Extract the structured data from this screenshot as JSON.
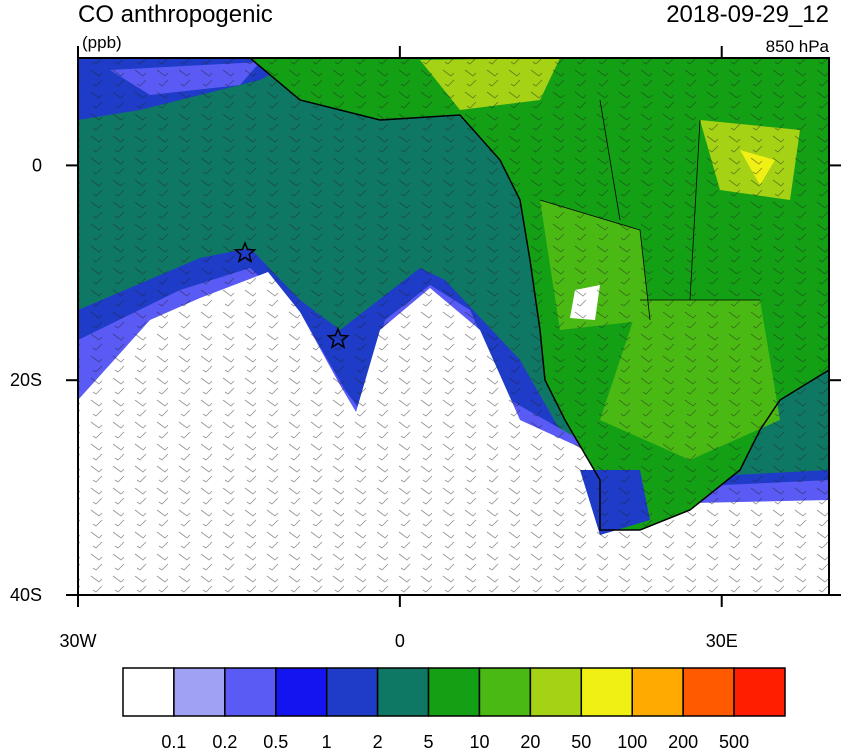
{
  "header": {
    "title": "CO anthropogenic",
    "units": "(ppb)",
    "date": "2018-09-29_12",
    "level": "850 hPa"
  },
  "map": {
    "lonlim": [
      -30,
      40
    ],
    "latlim": [
      -40,
      10
    ],
    "lon_ticks": [
      {
        "value": -30,
        "label": "30W"
      },
      0,
      {
        "value": 30,
        "label": "30E"
      }
    ],
    "lat_ticks": [
      0,
      {
        "value": -20,
        "label": "20S"
      },
      {
        "value": -40,
        "label": "40S"
      }
    ]
  },
  "colorbar": {
    "colors": [
      "#ffffff",
      "#a0a0f5",
      "#5a5af5",
      "#1414f0",
      "#1e3cc8",
      "#0f7864",
      "#14a014",
      "#4bb914",
      "#a5d214",
      "#f0f014",
      "#ffaa00",
      "#ff5a00",
      "#ff1e00"
    ],
    "levels": [
      0.1,
      0.2,
      0.5,
      1,
      2,
      5,
      10,
      20,
      50,
      100,
      200,
      500
    ]
  }
}
